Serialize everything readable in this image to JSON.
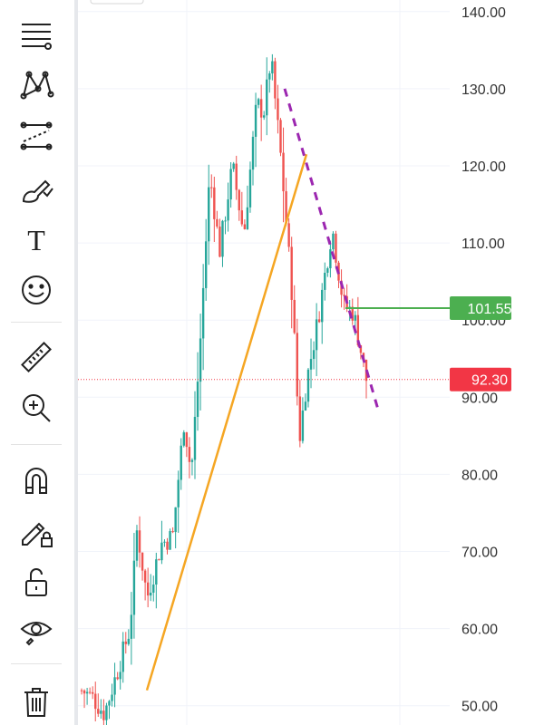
{
  "toolbar": {
    "items": [
      {
        "name": "trend-lines-tool",
        "icon": "horizontal-lines-icon"
      },
      {
        "name": "patterns-tool",
        "icon": "xabcd-pattern-icon"
      },
      {
        "name": "forecasting-tool",
        "icon": "projection-icon"
      },
      {
        "name": "brush-tool",
        "icon": "brush-icon"
      },
      {
        "name": "text-tool",
        "icon": "text-icon"
      },
      {
        "name": "emoji-tool",
        "icon": "smiley-icon"
      },
      {
        "name": "measure-tool",
        "icon": "ruler-icon"
      },
      {
        "name": "zoom-in-tool",
        "icon": "zoom-in-icon"
      },
      {
        "name": "magnet-mode",
        "icon": "magnet-icon"
      },
      {
        "name": "lock-drawings",
        "icon": "pencil-lock-icon"
      },
      {
        "name": "lock-all",
        "icon": "unlock-icon"
      },
      {
        "name": "hide-drawings",
        "icon": "eye-icon"
      },
      {
        "name": "remove-drawings",
        "icon": "trash-icon"
      }
    ],
    "text_glyph": "T"
  },
  "chart_data": {
    "type": "candlestick",
    "y_axis": {
      "ticks": [
        "140.00",
        "130.00",
        "120.00",
        "110.00",
        "100.00",
        "90.00",
        "80.00",
        "70.00",
        "60.00",
        "50.00"
      ],
      "range": [
        47.5,
        141.5
      ],
      "position": "right",
      "grid": true
    },
    "price_tags": [
      {
        "label": "101.55",
        "value": 101.55,
        "color": "#4caf50"
      },
      {
        "label": "92.30",
        "value": 92.3,
        "color": "#f23645"
      }
    ],
    "key_levels": [
      {
        "role": "start",
        "value": 52
      },
      {
        "role": "low",
        "value": 49
      },
      {
        "role": "surge-1",
        "value": 73
      },
      {
        "role": "dip-1",
        "value": 64
      },
      {
        "role": "base-2",
        "value": 71
      },
      {
        "role": "surge-2",
        "value": 87
      },
      {
        "role": "dip-2",
        "value": 80
      },
      {
        "role": "surge-3",
        "value": 119
      },
      {
        "role": "dip-3",
        "value": 109
      },
      {
        "role": "mid-top",
        "value": 120
      },
      {
        "role": "peak",
        "value": 134
      },
      {
        "role": "fall-1",
        "value": 121
      },
      {
        "role": "drop-low",
        "value": 84.5
      },
      {
        "role": "rebound",
        "value": 100
      },
      {
        "role": "lower-high",
        "value": 112
      },
      {
        "role": "last",
        "value": 92.3
      }
    ],
    "drawings": [
      {
        "type": "trend-line",
        "color": "#f5a623",
        "from": 52,
        "to": 121.5
      },
      {
        "type": "dashed-trend-line",
        "color": "#9c27b0",
        "from": 130,
        "to": 88
      },
      {
        "type": "horizontal-line",
        "color": "#4caf50",
        "value": 101.55
      },
      {
        "type": "dotted-price-line",
        "color": "#f23645",
        "value": 92.3
      }
    ],
    "colors": {
      "up": "#26a69a",
      "down": "#ef5350"
    }
  }
}
